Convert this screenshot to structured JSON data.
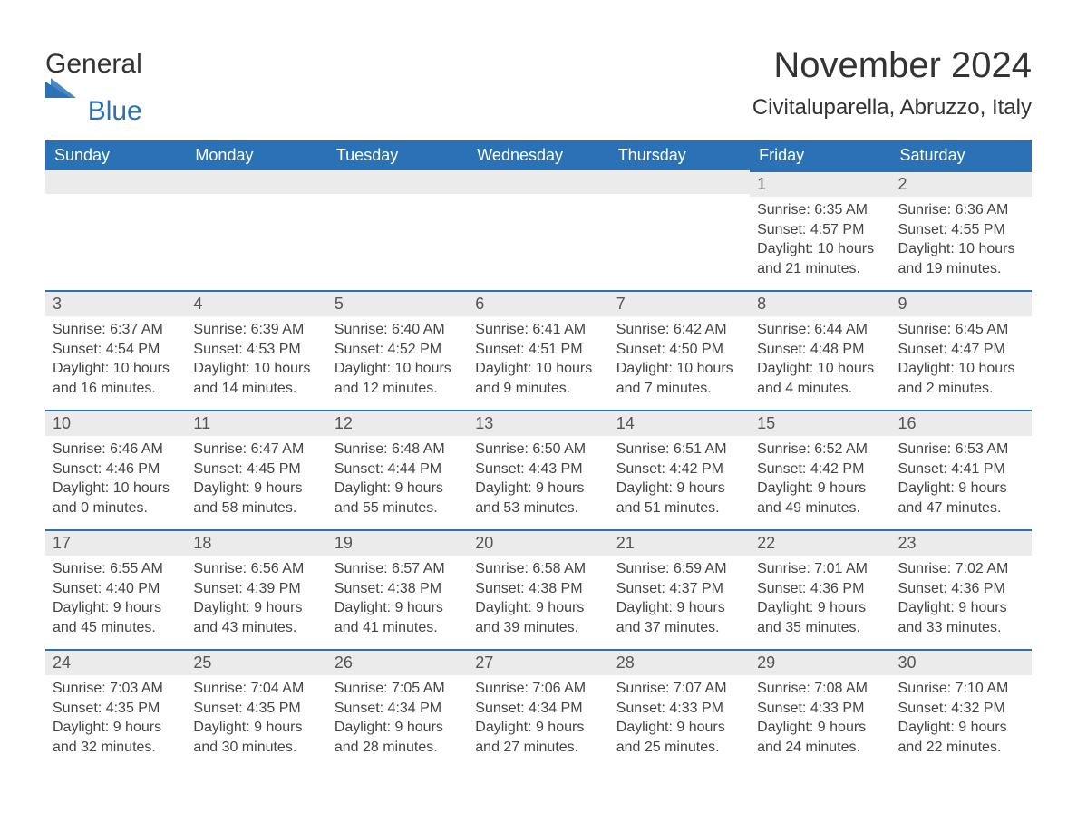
{
  "brand": {
    "part1": "General",
    "part2": "Blue"
  },
  "title": "November 2024",
  "location": "Civitaluparella, Abruzzo, Italy",
  "colors": {
    "header_bg": "#2a72b5",
    "header_text": "#ffffff",
    "day_bg": "#ebebeb",
    "accent": "#2a72b5",
    "page_bg": "#ffffff",
    "text": "#333333"
  },
  "day_headers": [
    "Sunday",
    "Monday",
    "Tuesday",
    "Wednesday",
    "Thursday",
    "Friday",
    "Saturday"
  ],
  "weeks": [
    [
      null,
      null,
      null,
      null,
      null,
      {
        "n": "1",
        "sunrise": "6:35 AM",
        "sunset": "4:57 PM",
        "dl1": "Daylight: 10 hours",
        "dl2": "and 21 minutes."
      },
      {
        "n": "2",
        "sunrise": "6:36 AM",
        "sunset": "4:55 PM",
        "dl1": "Daylight: 10 hours",
        "dl2": "and 19 minutes."
      }
    ],
    [
      {
        "n": "3",
        "sunrise": "6:37 AM",
        "sunset": "4:54 PM",
        "dl1": "Daylight: 10 hours",
        "dl2": "and 16 minutes."
      },
      {
        "n": "4",
        "sunrise": "6:39 AM",
        "sunset": "4:53 PM",
        "dl1": "Daylight: 10 hours",
        "dl2": "and 14 minutes."
      },
      {
        "n": "5",
        "sunrise": "6:40 AM",
        "sunset": "4:52 PM",
        "dl1": "Daylight: 10 hours",
        "dl2": "and 12 minutes."
      },
      {
        "n": "6",
        "sunrise": "6:41 AM",
        "sunset": "4:51 PM",
        "dl1": "Daylight: 10 hours",
        "dl2": "and 9 minutes."
      },
      {
        "n": "7",
        "sunrise": "6:42 AM",
        "sunset": "4:50 PM",
        "dl1": "Daylight: 10 hours",
        "dl2": "and 7 minutes."
      },
      {
        "n": "8",
        "sunrise": "6:44 AM",
        "sunset": "4:48 PM",
        "dl1": "Daylight: 10 hours",
        "dl2": "and 4 minutes."
      },
      {
        "n": "9",
        "sunrise": "6:45 AM",
        "sunset": "4:47 PM",
        "dl1": "Daylight: 10 hours",
        "dl2": "and 2 minutes."
      }
    ],
    [
      {
        "n": "10",
        "sunrise": "6:46 AM",
        "sunset": "4:46 PM",
        "dl1": "Daylight: 10 hours",
        "dl2": "and 0 minutes."
      },
      {
        "n": "11",
        "sunrise": "6:47 AM",
        "sunset": "4:45 PM",
        "dl1": "Daylight: 9 hours",
        "dl2": "and 58 minutes."
      },
      {
        "n": "12",
        "sunrise": "6:48 AM",
        "sunset": "4:44 PM",
        "dl1": "Daylight: 9 hours",
        "dl2": "and 55 minutes."
      },
      {
        "n": "13",
        "sunrise": "6:50 AM",
        "sunset": "4:43 PM",
        "dl1": "Daylight: 9 hours",
        "dl2": "and 53 minutes."
      },
      {
        "n": "14",
        "sunrise": "6:51 AM",
        "sunset": "4:42 PM",
        "dl1": "Daylight: 9 hours",
        "dl2": "and 51 minutes."
      },
      {
        "n": "15",
        "sunrise": "6:52 AM",
        "sunset": "4:42 PM",
        "dl1": "Daylight: 9 hours",
        "dl2": "and 49 minutes."
      },
      {
        "n": "16",
        "sunrise": "6:53 AM",
        "sunset": "4:41 PM",
        "dl1": "Daylight: 9 hours",
        "dl2": "and 47 minutes."
      }
    ],
    [
      {
        "n": "17",
        "sunrise": "6:55 AM",
        "sunset": "4:40 PM",
        "dl1": "Daylight: 9 hours",
        "dl2": "and 45 minutes."
      },
      {
        "n": "18",
        "sunrise": "6:56 AM",
        "sunset": "4:39 PM",
        "dl1": "Daylight: 9 hours",
        "dl2": "and 43 minutes."
      },
      {
        "n": "19",
        "sunrise": "6:57 AM",
        "sunset": "4:38 PM",
        "dl1": "Daylight: 9 hours",
        "dl2": "and 41 minutes."
      },
      {
        "n": "20",
        "sunrise": "6:58 AM",
        "sunset": "4:38 PM",
        "dl1": "Daylight: 9 hours",
        "dl2": "and 39 minutes."
      },
      {
        "n": "21",
        "sunrise": "6:59 AM",
        "sunset": "4:37 PM",
        "dl1": "Daylight: 9 hours",
        "dl2": "and 37 minutes."
      },
      {
        "n": "22",
        "sunrise": "7:01 AM",
        "sunset": "4:36 PM",
        "dl1": "Daylight: 9 hours",
        "dl2": "and 35 minutes."
      },
      {
        "n": "23",
        "sunrise": "7:02 AM",
        "sunset": "4:36 PM",
        "dl1": "Daylight: 9 hours",
        "dl2": "and 33 minutes."
      }
    ],
    [
      {
        "n": "24",
        "sunrise": "7:03 AM",
        "sunset": "4:35 PM",
        "dl1": "Daylight: 9 hours",
        "dl2": "and 32 minutes."
      },
      {
        "n": "25",
        "sunrise": "7:04 AM",
        "sunset": "4:35 PM",
        "dl1": "Daylight: 9 hours",
        "dl2": "and 30 minutes."
      },
      {
        "n": "26",
        "sunrise": "7:05 AM",
        "sunset": "4:34 PM",
        "dl1": "Daylight: 9 hours",
        "dl2": "and 28 minutes."
      },
      {
        "n": "27",
        "sunrise": "7:06 AM",
        "sunset": "4:34 PM",
        "dl1": "Daylight: 9 hours",
        "dl2": "and 27 minutes."
      },
      {
        "n": "28",
        "sunrise": "7:07 AM",
        "sunset": "4:33 PM",
        "dl1": "Daylight: 9 hours",
        "dl2": "and 25 minutes."
      },
      {
        "n": "29",
        "sunrise": "7:08 AM",
        "sunset": "4:33 PM",
        "dl1": "Daylight: 9 hours",
        "dl2": "and 24 minutes."
      },
      {
        "n": "30",
        "sunrise": "7:10 AM",
        "sunset": "4:32 PM",
        "dl1": "Daylight: 9 hours",
        "dl2": "and 22 minutes."
      }
    ]
  ],
  "labels": {
    "sunrise": "Sunrise: ",
    "sunset": "Sunset: "
  }
}
